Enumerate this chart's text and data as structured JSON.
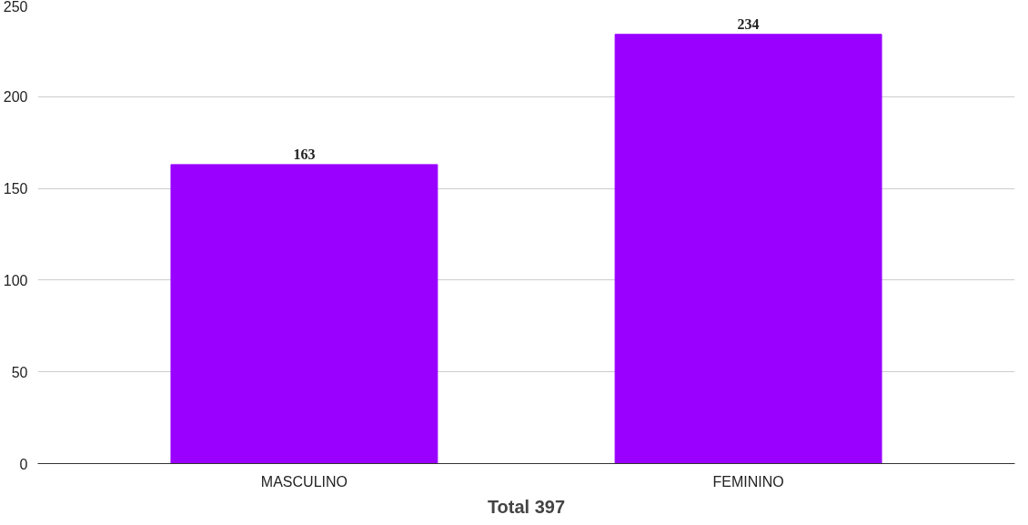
{
  "chart_data": {
    "type": "bar",
    "xlabel": "Total 397",
    "categories": [
      "MASCULINO",
      "FEMININO"
    ],
    "values": [
      163,
      234
    ],
    "color": "#9900ff",
    "ylim": [
      0,
      250
    ],
    "yticks": [
      0,
      50,
      100,
      150,
      200,
      250
    ],
    "grid": "y",
    "data_labels": true
  }
}
